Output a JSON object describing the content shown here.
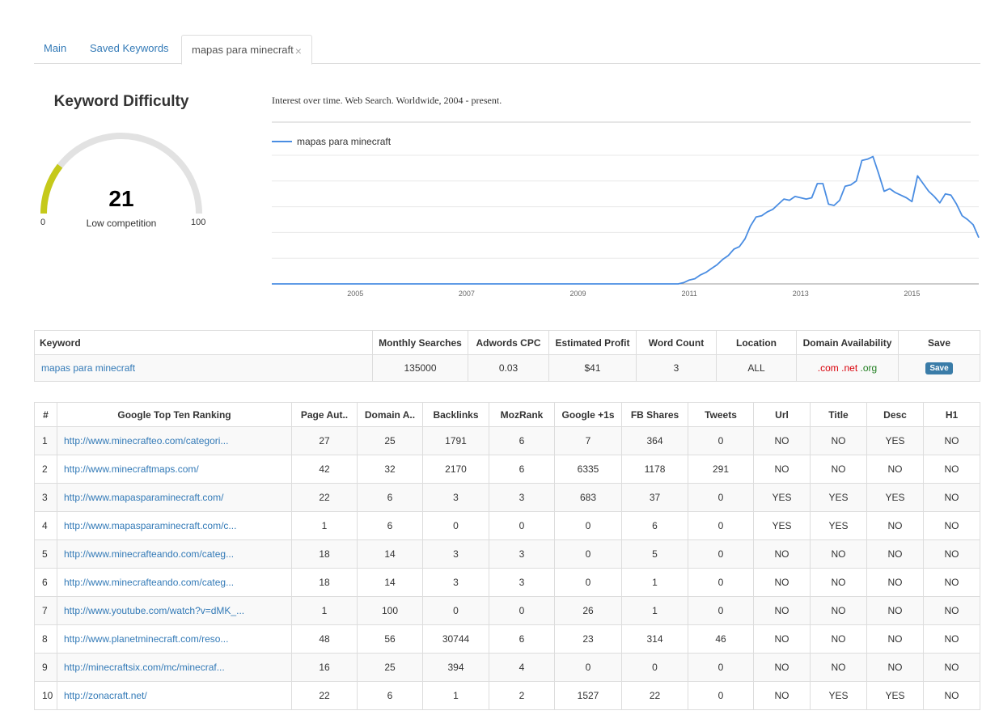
{
  "tabs": [
    {
      "label": "Main"
    },
    {
      "label": "Saved Keywords"
    },
    {
      "label": "mapas para minecraft",
      "close": "×"
    }
  ],
  "difficulty": {
    "title": "Keyword Difficulty",
    "value": 21,
    "label": "Low competition",
    "min": "0",
    "max": "100",
    "fill_color": "#c5c91a",
    "track_color": "#e2e2e2"
  },
  "chart_data": {
    "type": "line",
    "title": "Interest over time. Web Search. Worldwide, 2004 - present.",
    "legend_position": "top-left",
    "x_tick_labels": [
      "2005",
      "2007",
      "2009",
      "2011",
      "2013",
      "2015"
    ],
    "ylim": [
      0,
      100
    ],
    "xlim": [
      2004.0,
      2016.7
    ],
    "series": [
      {
        "name": "mapas para minecraft",
        "color": "#4a8de2",
        "x": [
          2004.0,
          2011.3,
          2011.4,
          2011.5,
          2011.6,
          2011.7,
          2011.8,
          2011.9,
          2012.0,
          2012.1,
          2012.2,
          2012.3,
          2012.4,
          2012.5,
          2012.6,
          2012.7,
          2012.8,
          2012.9,
          2013.0,
          2013.1,
          2013.2,
          2013.3,
          2013.4,
          2013.5,
          2013.6,
          2013.7,
          2013.8,
          2013.9,
          2014.0,
          2014.1,
          2014.2,
          2014.3,
          2014.4,
          2014.5,
          2014.6,
          2014.7,
          2014.8,
          2014.9,
          2015.0,
          2015.1,
          2015.2,
          2015.3,
          2015.4,
          2015.5,
          2015.6,
          2015.7,
          2015.8,
          2015.9,
          2016.0,
          2016.1,
          2016.2,
          2016.3,
          2016.4,
          2016.5,
          2016.6,
          2016.7
        ],
        "y": [
          0,
          0,
          1,
          3,
          4,
          7,
          9,
          12,
          15,
          19,
          22,
          27,
          29,
          35,
          45,
          52,
          53,
          56,
          58,
          62,
          66,
          65,
          68,
          67,
          66,
          67,
          78,
          78,
          62,
          61,
          65,
          76,
          77,
          80,
          96,
          97,
          99,
          86,
          72,
          74,
          71,
          69,
          67,
          64,
          84,
          78,
          72,
          68,
          63,
          70,
          69,
          62,
          53,
          50,
          46,
          36
        ]
      }
    ]
  },
  "keyword_table": {
    "headers": [
      "Keyword",
      "Monthly Searches",
      "Adwords CPC",
      "Estimated Profit",
      "Word Count",
      "Location",
      "Domain Availability",
      "Save"
    ],
    "row": {
      "keyword": "mapas para minecraft",
      "monthly_searches": "135000",
      "cpc": "0.03",
      "profit": "$41",
      "word_count": "3",
      "location": "ALL",
      "domain_com": ".com",
      "domain_net": ".net",
      "domain_org": ".org",
      "save_label": "Save"
    }
  },
  "ranking_table": {
    "headers": [
      "#",
      "Google Top Ten Ranking",
      "Page Aut..",
      "Domain A..",
      "Backlinks",
      "MozRank",
      "Google +1s",
      "FB Shares",
      "Tweets",
      "Url",
      "Title",
      "Desc",
      "H1"
    ],
    "rows": [
      [
        "1",
        "http://www.minecrafteo.com/categori...",
        "27",
        "25",
        "1791",
        "6",
        "7",
        "364",
        "0",
        "NO",
        "NO",
        "YES",
        "NO"
      ],
      [
        "2",
        "http://www.minecraftmaps.com/",
        "42",
        "32",
        "2170",
        "6",
        "6335",
        "1178",
        "291",
        "NO",
        "NO",
        "NO",
        "NO"
      ],
      [
        "3",
        "http://www.mapasparaminecraft.com/",
        "22",
        "6",
        "3",
        "3",
        "683",
        "37",
        "0",
        "YES",
        "YES",
        "YES",
        "NO"
      ],
      [
        "4",
        "http://www.mapasparaminecraft.com/c...",
        "1",
        "6",
        "0",
        "0",
        "0",
        "6",
        "0",
        "YES",
        "YES",
        "NO",
        "NO"
      ],
      [
        "5",
        "http://www.minecrafteando.com/categ...",
        "18",
        "14",
        "3",
        "3",
        "0",
        "5",
        "0",
        "NO",
        "NO",
        "NO",
        "NO"
      ],
      [
        "6",
        "http://www.minecrafteando.com/categ...",
        "18",
        "14",
        "3",
        "3",
        "0",
        "1",
        "0",
        "NO",
        "NO",
        "NO",
        "NO"
      ],
      [
        "7",
        "http://www.youtube.com/watch?v=dMK_...",
        "1",
        "100",
        "0",
        "0",
        "26",
        "1",
        "0",
        "NO",
        "NO",
        "NO",
        "NO"
      ],
      [
        "8",
        "http://www.planetminecraft.com/reso...",
        "48",
        "56",
        "30744",
        "6",
        "23",
        "314",
        "46",
        "NO",
        "NO",
        "NO",
        "NO"
      ],
      [
        "9",
        "http://minecraftsix.com/mc/minecraf...",
        "16",
        "25",
        "394",
        "4",
        "0",
        "0",
        "0",
        "NO",
        "NO",
        "NO",
        "NO"
      ],
      [
        "10",
        "http://zonacraft.net/",
        "22",
        "6",
        "1",
        "2",
        "1527",
        "22",
        "0",
        "NO",
        "YES",
        "YES",
        "NO"
      ]
    ]
  }
}
